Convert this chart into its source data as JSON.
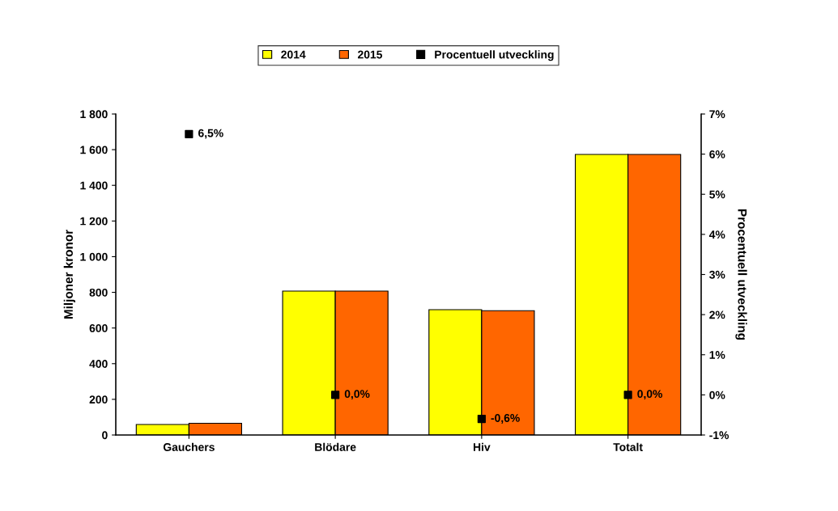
{
  "chart_data": {
    "type": "bar",
    "categories": [
      "Gauchers",
      "Blödare",
      "Hiv",
      "Totalt"
    ],
    "series": [
      {
        "name": "2014",
        "color": "#ffff00",
        "values": [
          59,
          807,
          703,
          1573
        ]
      },
      {
        "name": "2015",
        "color": "#ff6600",
        "values": [
          66,
          807,
          697,
          1573
        ]
      },
      {
        "name": "Procentuell utveckling",
        "type": "scatter",
        "axis": "y2",
        "color": "#000000",
        "marker": "square",
        "values": [
          6.5,
          0.0,
          -0.6,
          0.0
        ],
        "value_labels": [
          "6,5%",
          "0,0%",
          "-0,6%",
          "0,0%"
        ]
      }
    ],
    "ylabel": "Miljoner kronor",
    "y2label": "Procentuell utveckling",
    "ylim": [
      0,
      1800
    ],
    "yticks": [
      0,
      200,
      400,
      600,
      800,
      {
        "value": 1000,
        "label": "1 000"
      },
      {
        "value": 1200,
        "label": "1 200"
      },
      {
        "value": 1400,
        "label": "1 400"
      },
      {
        "value": 1600,
        "label": "1 600"
      },
      {
        "value": 1800,
        "label": "1 800"
      }
    ],
    "y2lim": [
      -1,
      7
    ],
    "y2ticks": [
      {
        "value": -1,
        "label": "-1%"
      },
      {
        "value": 0,
        "label": "0%"
      },
      {
        "value": 1,
        "label": "1%"
      },
      {
        "value": 2,
        "label": "2%"
      },
      {
        "value": 3,
        "label": "3%"
      },
      {
        "value": 4,
        "label": "4%"
      },
      {
        "value": 5,
        "label": "5%"
      },
      {
        "value": 6,
        "label": "6%"
      },
      {
        "value": 7,
        "label": "7%"
      }
    ],
    "legend": "top",
    "grid": false
  }
}
